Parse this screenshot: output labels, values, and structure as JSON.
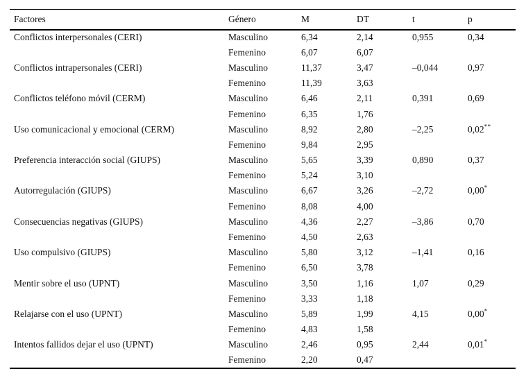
{
  "table": {
    "columns": {
      "factor": "Factores",
      "genero": "Género",
      "m": "M",
      "dt": "DT",
      "t": "t",
      "p": "p"
    },
    "chart_data": {
      "type": "table",
      "factors": [
        {
          "name": "Conflictos interpersonales (CERI)",
          "rows": [
            {
              "genero": "Masculino",
              "m": "6,34",
              "dt": "2,14",
              "t": "0,955",
              "p": "0,34",
              "p_sup": ""
            },
            {
              "genero": "Femenino",
              "m": "6,07",
              "dt": "6,07",
              "t": "",
              "p": "",
              "p_sup": ""
            }
          ]
        },
        {
          "name": "Conflictos intrapersonales (CERI)",
          "rows": [
            {
              "genero": "Masculino",
              "m": "11,37",
              "dt": "3,47",
              "t": "–0,044",
              "p": "0,97",
              "p_sup": ""
            },
            {
              "genero": "Femenino",
              "m": "11,39",
              "dt": "3,63",
              "t": "",
              "p": "",
              "p_sup": ""
            }
          ]
        },
        {
          "name": "Conflictos teléfono móvil (CERM)",
          "rows": [
            {
              "genero": "Masculino",
              "m": "6,46",
              "dt": "2,11",
              "t": "0,391",
              "p": "0,69",
              "p_sup": ""
            },
            {
              "genero": "Femenino",
              "m": "6,35",
              "dt": "1,76",
              "t": "",
              "p": "",
              "p_sup": ""
            }
          ]
        },
        {
          "name": "Uso comunicacional y emocional (CERM)",
          "rows": [
            {
              "genero": "Masculino",
              "m": "8,92",
              "dt": "2,80",
              "t": "–2,25",
              "p": "0,02",
              "p_sup": "**"
            },
            {
              "genero": "Femenino",
              "m": "9,84",
              "dt": "2,95",
              "t": "",
              "p": "",
              "p_sup": ""
            }
          ]
        },
        {
          "name": "Preferencia interacción social (GIUPS)",
          "rows": [
            {
              "genero": "Masculino",
              "m": "5,65",
              "dt": "3,39",
              "t": "0,890",
              "p": "0,37",
              "p_sup": ""
            },
            {
              "genero": "Femenino",
              "m": "5,24",
              "dt": "3,10",
              "t": "",
              "p": "",
              "p_sup": ""
            }
          ]
        },
        {
          "name": "Autorregulación (GIUPS)",
          "rows": [
            {
              "genero": "Masculino",
              "m": "6,67",
              "dt": "3,26",
              "t": "–2,72",
              "p": "0,00",
              "p_sup": "*"
            },
            {
              "genero": "Femenino",
              "m": "8,08",
              "dt": "4,00",
              "t": "",
              "p": "",
              "p_sup": ""
            }
          ]
        },
        {
          "name": "Consecuencias negativas (GIUPS)",
          "rows": [
            {
              "genero": "Masculino",
              "m": "4,36",
              "dt": "2,27",
              "t": "–3,86",
              "p": "0,70",
              "p_sup": ""
            },
            {
              "genero": "Femenino",
              "m": "4,50",
              "dt": "2,63",
              "t": "",
              "p": "",
              "p_sup": ""
            }
          ]
        },
        {
          "name": "Uso compulsivo (GIUPS)",
          "rows": [
            {
              "genero": "Masculino",
              "m": "5,80",
              "dt": "3,12",
              "t": "–1,41",
              "p": "0,16",
              "p_sup": ""
            },
            {
              "genero": "Femenino",
              "m": "6,50",
              "dt": "3,78",
              "t": "",
              "p": "",
              "p_sup": ""
            }
          ]
        },
        {
          "name": "Mentir sobre el uso (UPNT)",
          "rows": [
            {
              "genero": "Masculino",
              "m": "3,50",
              "dt": "1,16",
              "t": "1,07",
              "p": "0,29",
              "p_sup": ""
            },
            {
              "genero": "Femenino",
              "m": "3,33",
              "dt": "1,18",
              "t": "",
              "p": "",
              "p_sup": ""
            }
          ]
        },
        {
          "name": "Relajarse con el uso (UPNT)",
          "rows": [
            {
              "genero": "Masculino",
              "m": "5,89",
              "dt": "1,99",
              "t": "4,15",
              "p": "0,00",
              "p_sup": "*"
            },
            {
              "genero": "Femenino",
              "m": "4,83",
              "dt": "1,58",
              "t": "",
              "p": "",
              "p_sup": ""
            }
          ]
        },
        {
          "name": "Intentos fallidos dejar el uso (UPNT)",
          "rows": [
            {
              "genero": "Masculino",
              "m": "2,46",
              "dt": "0,95",
              "t": "2,44",
              "p": "0,01",
              "p_sup": "*"
            },
            {
              "genero": "Femenino",
              "m": "2,20",
              "dt": "0,47",
              "t": "",
              "p": "",
              "p_sup": ""
            }
          ]
        }
      ]
    },
    "colors": {
      "text": "#111111",
      "rule": "#000000",
      "background": "#ffffff"
    }
  }
}
